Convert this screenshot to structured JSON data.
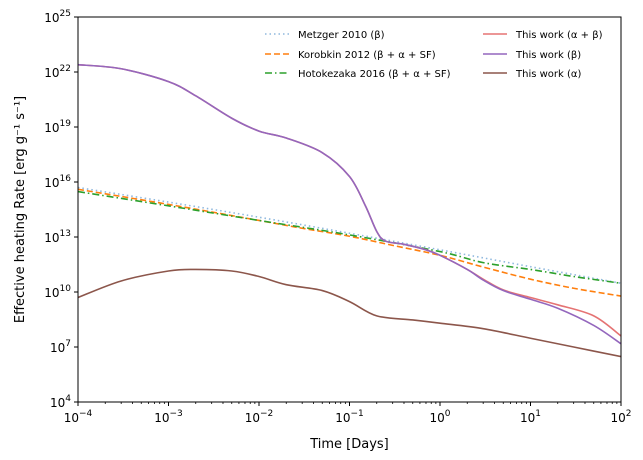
{
  "chart_data": {
    "type": "line",
    "title": "",
    "xlabel": "Time [Days]",
    "ylabel": "Effective heating Rate [erg g⁻¹ s⁻¹]",
    "xscale": "log",
    "yscale": "log",
    "xlim": [
      0.0001,
      100
    ],
    "ylim": [
      10000,
      1e+25
    ],
    "grid": false,
    "legend_placement": "top-right, two columns",
    "x_ticks": [
      {
        "value": 0.0001,
        "base": "10",
        "exp": "−4"
      },
      {
        "value": 0.001,
        "base": "10",
        "exp": "−3"
      },
      {
        "value": 0.01,
        "base": "10",
        "exp": "−2"
      },
      {
        "value": 0.1,
        "base": "10",
        "exp": "−1"
      },
      {
        "value": 1,
        "base": "10",
        "exp": "0"
      },
      {
        "value": 10,
        "base": "10",
        "exp": "1"
      },
      {
        "value": 100,
        "base": "10",
        "exp": "2"
      }
    ],
    "y_ticks": [
      {
        "value": 10000,
        "base": "10",
        "exp": "4"
      },
      {
        "value": 10000000.0,
        "base": "10",
        "exp": "7"
      },
      {
        "value": 10000000000.0,
        "base": "10",
        "exp": "10"
      },
      {
        "value": 10000000000000.0,
        "base": "10",
        "exp": "13"
      },
      {
        "value": 1e+16,
        "base": "10",
        "exp": "16"
      },
      {
        "value": 1e+19,
        "base": "10",
        "exp": "19"
      },
      {
        "value": 1e+22,
        "base": "10",
        "exp": "22"
      },
      {
        "value": 1e+25,
        "base": "10",
        "exp": "25"
      }
    ],
    "series": [
      {
        "name": "Metzger 2010 (β)",
        "color": "#8fb8de",
        "dash": "dotted",
        "points": [
          [
            0.0001,
            5000000000000000.0
          ],
          [
            0.001,
            800000000000000.0
          ],
          [
            0.01,
            120000000000000.0
          ],
          [
            0.1,
            16000000000000.0
          ],
          [
            1,
            2000000000000.0
          ],
          [
            10,
            240000000000.0
          ],
          [
            100,
            30000000000.0
          ]
        ]
      },
      {
        "name": "Korobkin 2012 (β + α + SF)",
        "color": "#ff7f0e",
        "dash": "dashed",
        "points": [
          [
            0.0001,
            4000000000000000.0
          ],
          [
            0.001,
            600000000000000.0
          ],
          [
            0.01,
            80000000000000.0
          ],
          [
            0.03,
            30000000000000.0
          ],
          [
            0.1,
            11000000000000.0
          ],
          [
            0.3,
            3500000000000.0
          ],
          [
            1,
            1000000000000.0
          ],
          [
            3,
            230000000000.0
          ],
          [
            10,
            50000000000.0
          ],
          [
            30,
            16000000000.0
          ],
          [
            100,
            6000000000.0
          ]
        ]
      },
      {
        "name": "Hotokezaka 2016 (β + α + SF)",
        "color": "#2ca02c",
        "dash": "dashdot",
        "points": [
          [
            0.0001,
            3000000000000000.0
          ],
          [
            0.001,
            500000000000000.0
          ],
          [
            0.01,
            80000000000000.0
          ],
          [
            0.1,
            13000000000000.0
          ],
          [
            1,
            1600000000000.0
          ],
          [
            3,
            400000000000.0
          ],
          [
            10,
            170000000000.0
          ],
          [
            30,
            70000000000.0
          ],
          [
            100,
            30000000000.0
          ]
        ]
      },
      {
        "name": "This work (α + β)",
        "color": "#e57373",
        "dash": "solid",
        "points": [
          [
            0.0001,
            2.5e+22
          ],
          [
            0.0003,
            1.5e+22
          ],
          [
            0.001,
            3e+21
          ],
          [
            0.002,
            5e+20
          ],
          [
            0.005,
            3e+19
          ],
          [
            0.01,
            6e+18
          ],
          [
            0.02,
            2.5e+18
          ],
          [
            0.05,
            4e+17
          ],
          [
            0.1,
            2e+16
          ],
          [
            0.15,
            500000000000000.0
          ],
          [
            0.2,
            20000000000000.0
          ],
          [
            0.25,
            6000000000000.0
          ],
          [
            0.4,
            4000000000000.0
          ],
          [
            0.7,
            2000000000000.0
          ],
          [
            1,
            1000000000000.0
          ],
          [
            2,
            170000000000.0
          ],
          [
            3,
            50000000000.0
          ],
          [
            5,
            13000000000.0
          ],
          [
            10,
            5000000000.0
          ],
          [
            20,
            2000000000.0
          ],
          [
            50,
            500000000.0
          ],
          [
            100,
            40000000.0
          ]
        ]
      },
      {
        "name": "This work (β)",
        "color": "#9467bd",
        "dash": "solid",
        "points": [
          [
            0.0001,
            2.5e+22
          ],
          [
            0.0003,
            1.5e+22
          ],
          [
            0.001,
            3e+21
          ],
          [
            0.002,
            5e+20
          ],
          [
            0.005,
            3e+19
          ],
          [
            0.01,
            6e+18
          ],
          [
            0.02,
            2.5e+18
          ],
          [
            0.05,
            4e+17
          ],
          [
            0.1,
            2e+16
          ],
          [
            0.15,
            500000000000000.0
          ],
          [
            0.2,
            20000000000000.0
          ],
          [
            0.25,
            6000000000000.0
          ],
          [
            0.4,
            4000000000000.0
          ],
          [
            0.7,
            2000000000000.0
          ],
          [
            1,
            1000000000000.0
          ],
          [
            2,
            170000000000.0
          ],
          [
            3,
            45000000000.0
          ],
          [
            5,
            12000000000.0
          ],
          [
            10,
            4000000000.0
          ],
          [
            20,
            1300000000.0
          ],
          [
            50,
            150000000.0
          ],
          [
            100,
            15000000.0
          ]
        ]
      },
      {
        "name": "This work (α)",
        "color": "#8c564b",
        "dash": "solid",
        "points": [
          [
            0.0001,
            5000000000.0
          ],
          [
            0.0003,
            40000000000.0
          ],
          [
            0.001,
            140000000000.0
          ],
          [
            0.002,
            170000000000.0
          ],
          [
            0.005,
            140000000000.0
          ],
          [
            0.01,
            70000000000.0
          ],
          [
            0.02,
            25000000000.0
          ],
          [
            0.05,
            12000000000.0
          ],
          [
            0.1,
            3000000000.0
          ],
          [
            0.2,
            500000000.0
          ],
          [
            0.5,
            300000000.0
          ],
          [
            1,
            200000000.0
          ],
          [
            3,
            100000000.0
          ],
          [
            10,
            30000000.0
          ],
          [
            30,
            10000000.0
          ],
          [
            100,
            3000000.0
          ]
        ]
      }
    ]
  }
}
